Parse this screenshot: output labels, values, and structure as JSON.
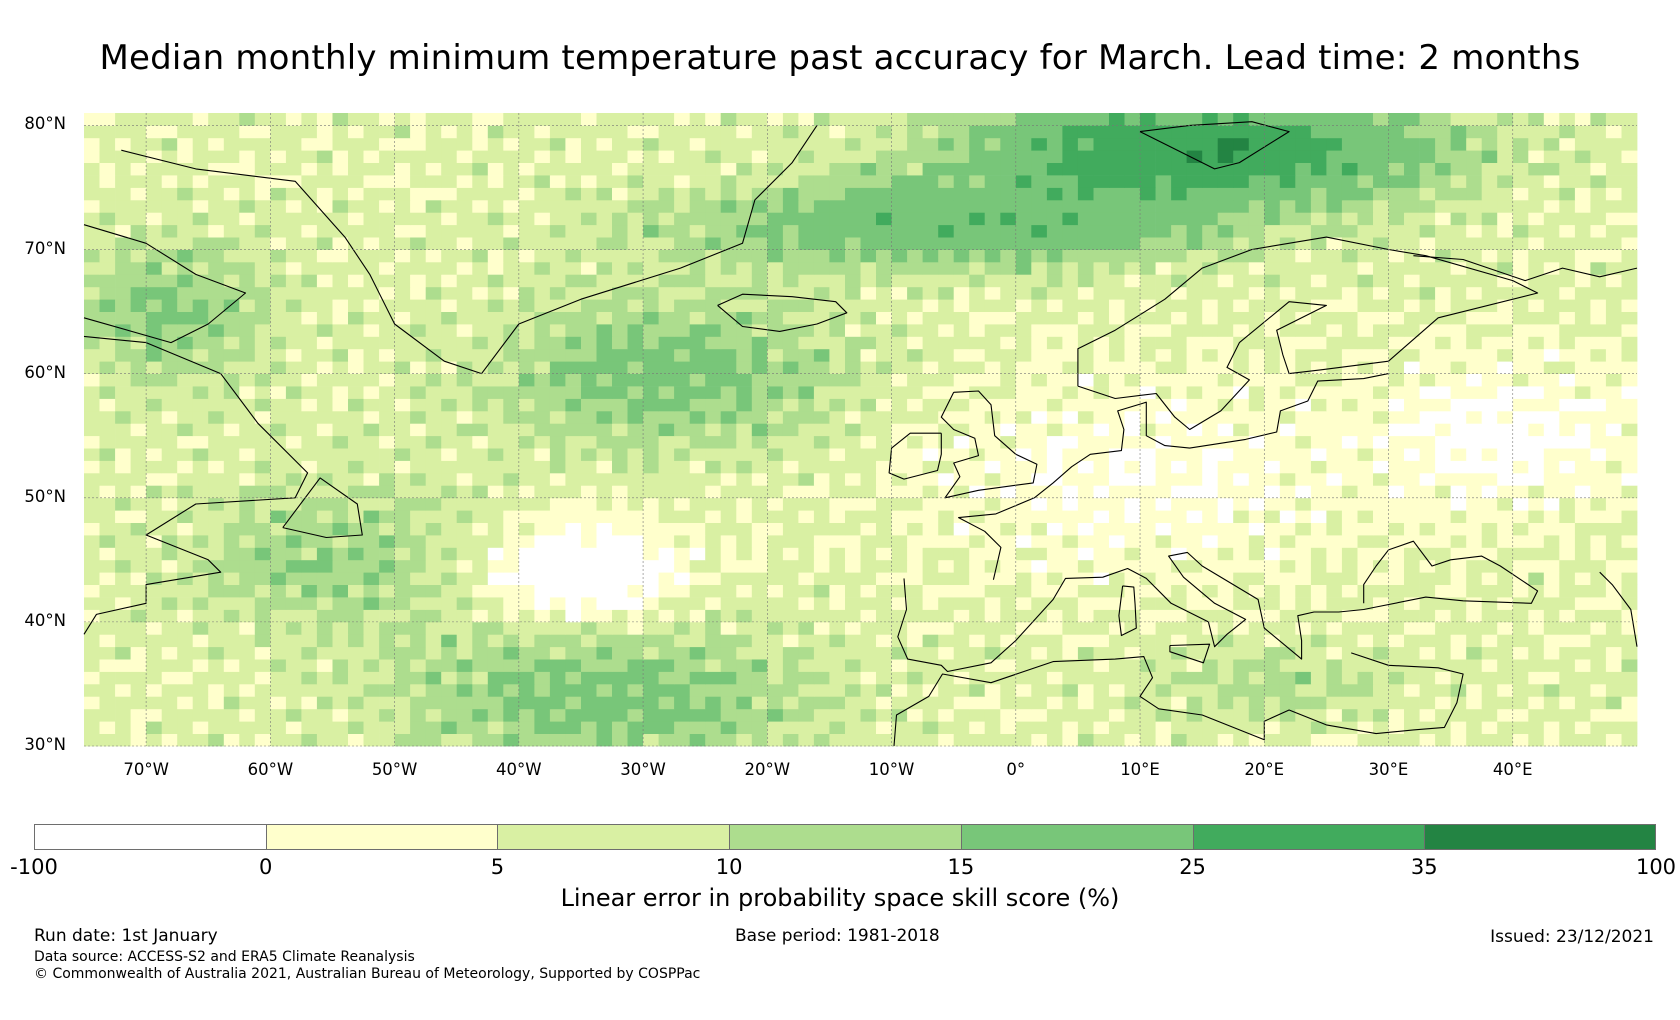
{
  "title": "Median monthly minimum temperature past accuracy for March. Lead time: 2 months",
  "map": {
    "extent": {
      "lon_min": -75,
      "lon_max": 50,
      "lat_min": 30,
      "lat_max": 81
    },
    "lat_labels": [
      {
        "lat": 80,
        "text": "80°N"
      },
      {
        "lat": 70,
        "text": "70°N"
      },
      {
        "lat": 60,
        "text": "60°N"
      },
      {
        "lat": 50,
        "text": "50°N"
      },
      {
        "lat": 40,
        "text": "40°N"
      },
      {
        "lat": 30,
        "text": "30°N"
      }
    ],
    "lon_labels": [
      {
        "lon": -70,
        "text": "70°W"
      },
      {
        "lon": -60,
        "text": "60°W"
      },
      {
        "lon": -50,
        "text": "50°W"
      },
      {
        "lon": -40,
        "text": "40°W"
      },
      {
        "lon": -30,
        "text": "30°W"
      },
      {
        "lon": -20,
        "text": "20°W"
      },
      {
        "lon": -10,
        "text": "10°W"
      },
      {
        "lon": 0,
        "text": "0°"
      },
      {
        "lon": 10,
        "text": "10°E"
      },
      {
        "lon": 20,
        "text": "20°E"
      },
      {
        "lon": 30,
        "text": "30°E"
      },
      {
        "lon": 40,
        "text": "40°E"
      }
    ]
  },
  "colorbar": {
    "bounds": [
      "-100",
      "0",
      "5",
      "10",
      "15",
      "25",
      "35",
      "100"
    ],
    "colors": [
      "#ffffff",
      "#ffffcc",
      "#d9f0a3",
      "#addd8e",
      "#78c679",
      "#41ab5d",
      "#238443"
    ],
    "label": "Linear error in probability space skill score (%)"
  },
  "footer": {
    "run_date": "Run date: 1st January",
    "base_period": "Base period: 1981-2018",
    "issued": "Issued: 23/12/2021",
    "data_source": "Data source: ACCESS-S2 and ERA5 Climate Reanalysis",
    "copyright": "© Commonwealth of Australia 2021, Australian Bureau of Meteorology, Supported by COSPPac"
  }
}
